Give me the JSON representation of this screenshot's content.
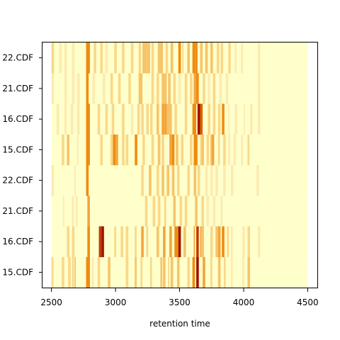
{
  "chart_data": {
    "type": "heatmap",
    "title": "",
    "xlabel": "retention time",
    "ylabel": "",
    "xlim": [
      2430,
      4575
    ],
    "xticks": [
      2500,
      3000,
      3500,
      4000,
      4500
    ],
    "x_range": [
      2500,
      4500
    ],
    "row_labels": [
      "15.CDF",
      "16.CDF",
      "21.CDF",
      "22.CDF",
      "15.CDF",
      "16.CDF",
      "21.CDF",
      "22.CDF"
    ],
    "colors": {
      "background": "#FFFFCC",
      "scale": [
        "#FFFFCC",
        "#FCEBB0",
        "#F9D88A",
        "#F6C46A",
        "#F3A53A",
        "#EE8C10",
        "#D96300",
        "#C23A00",
        "#A01000"
      ]
    },
    "bands": [
      [
        [
          2500,
          2515,
          2
        ],
        [
          2580,
          2600,
          2
        ],
        [
          2630,
          2650,
          2
        ],
        [
          2660,
          2675,
          2
        ],
        [
          2680,
          2690,
          3
        ],
        [
          2770,
          2800,
          5
        ],
        [
          2815,
          2830,
          1
        ],
        [
          2860,
          2880,
          2
        ],
        [
          2940,
          2960,
          3
        ],
        [
          3080,
          3100,
          2
        ],
        [
          3150,
          3165,
          3
        ],
        [
          3195,
          3210,
          2
        ],
        [
          3270,
          3285,
          2
        ],
        [
          3350,
          3365,
          3
        ],
        [
          3370,
          3390,
          3
        ],
        [
          3410,
          3420,
          2
        ],
        [
          3430,
          3450,
          3
        ],
        [
          3480,
          3500,
          3
        ],
        [
          3560,
          3580,
          2
        ],
        [
          3600,
          3620,
          5
        ],
        [
          3630,
          3650,
          8
        ],
        [
          3680,
          3700,
          4
        ],
        [
          3740,
          3755,
          2
        ],
        [
          3800,
          3820,
          3
        ],
        [
          3845,
          3860,
          2
        ],
        [
          3900,
          3915,
          1
        ],
        [
          3990,
          4005,
          1
        ],
        [
          4030,
          4050,
          3
        ]
      ],
      [
        [
          2620,
          2640,
          2
        ],
        [
          2660,
          2680,
          2
        ],
        [
          2780,
          2800,
          5
        ],
        [
          2870,
          2890,
          7
        ],
        [
          2890,
          2910,
          8
        ],
        [
          2990,
          3005,
          2
        ],
        [
          3040,
          3060,
          2
        ],
        [
          3080,
          3100,
          2
        ],
        [
          3150,
          3165,
          2
        ],
        [
          3200,
          3220,
          4
        ],
        [
          3240,
          3255,
          2
        ],
        [
          3320,
          3340,
          3
        ],
        [
          3370,
          3390,
          4
        ],
        [
          3420,
          3440,
          4
        ],
        [
          3460,
          3490,
          5
        ],
        [
          3490,
          3510,
          8
        ],
        [
          3530,
          3550,
          3
        ],
        [
          3610,
          3620,
          4
        ],
        [
          3630,
          3650,
          7
        ],
        [
          3660,
          3670,
          4
        ],
        [
          3670,
          3690,
          3
        ],
        [
          3740,
          3760,
          2
        ],
        [
          3780,
          3800,
          3
        ],
        [
          3800,
          3820,
          4
        ],
        [
          3830,
          3850,
          5
        ],
        [
          3870,
          3885,
          2
        ],
        [
          3900,
          3915,
          1
        ],
        [
          3990,
          4010,
          1
        ],
        [
          4030,
          4050,
          2
        ],
        [
          4110,
          4130,
          1
        ]
      ],
      [
        [
          2590,
          2600,
          1
        ],
        [
          2660,
          2675,
          1
        ],
        [
          2690,
          2705,
          1
        ],
        [
          2780,
          2800,
          4
        ],
        [
          3230,
          3250,
          2
        ],
        [
          3290,
          3310,
          2
        ],
        [
          3330,
          3350,
          2
        ],
        [
          3380,
          3395,
          2
        ],
        [
          3450,
          3470,
          3
        ],
        [
          3500,
          3520,
          2
        ],
        [
          3540,
          3560,
          2
        ],
        [
          3620,
          3640,
          3
        ],
        [
          3670,
          3690,
          2
        ],
        [
          3710,
          3730,
          1
        ],
        [
          3760,
          3780,
          1
        ],
        [
          3820,
          3835,
          1
        ]
      ],
      [
        [
          2500,
          2520,
          1
        ],
        [
          2680,
          2690,
          1
        ],
        [
          2770,
          2790,
          5
        ],
        [
          3200,
          3220,
          2
        ],
        [
          3260,
          3280,
          3
        ],
        [
          3320,
          3340,
          2
        ],
        [
          3360,
          3380,
          3
        ],
        [
          3400,
          3420,
          3
        ],
        [
          3440,
          3460,
          3
        ],
        [
          3480,
          3500,
          2
        ],
        [
          3560,
          3580,
          2
        ],
        [
          3610,
          3630,
          3
        ],
        [
          3640,
          3660,
          2
        ],
        [
          3700,
          3720,
          1
        ],
        [
          3740,
          3760,
          1
        ],
        [
          3780,
          3800,
          1
        ],
        [
          3840,
          3860,
          1
        ],
        [
          3900,
          3920,
          1
        ],
        [
          4100,
          4120,
          1
        ]
      ],
      [
        [
          2580,
          2600,
          2
        ],
        [
          2620,
          2640,
          3
        ],
        [
          2700,
          2710,
          1
        ],
        [
          2770,
          2800,
          5
        ],
        [
          2880,
          2900,
          2
        ],
        [
          2960,
          2980,
          2
        ],
        [
          2980,
          3000,
          5
        ],
        [
          3000,
          3020,
          4
        ],
        [
          3050,
          3070,
          2
        ],
        [
          3080,
          3100,
          2
        ],
        [
          3150,
          3170,
          5
        ],
        [
          3210,
          3230,
          2
        ],
        [
          3280,
          3300,
          2
        ],
        [
          3330,
          3350,
          3
        ],
        [
          3360,
          3380,
          2
        ],
        [
          3420,
          3440,
          4
        ],
        [
          3440,
          3460,
          5
        ],
        [
          3470,
          3490,
          3
        ],
        [
          3510,
          3530,
          2
        ],
        [
          3580,
          3600,
          2
        ],
        [
          3610,
          3640,
          5
        ],
        [
          3660,
          3670,
          2
        ],
        [
          3670,
          3690,
          3
        ],
        [
          3710,
          3730,
          2
        ],
        [
          3740,
          3750,
          3
        ],
        [
          3750,
          3770,
          4
        ],
        [
          3800,
          3815,
          2
        ],
        [
          3840,
          3860,
          2
        ],
        [
          3880,
          3895,
          1
        ],
        [
          3920,
          3940,
          1
        ],
        [
          3980,
          3995,
          1
        ],
        [
          4030,
          4045,
          2
        ]
      ],
      [
        [
          2540,
          2560,
          1
        ],
        [
          2600,
          2620,
          1
        ],
        [
          2650,
          2670,
          1
        ],
        [
          2700,
          2720,
          1
        ],
        [
          2770,
          2800,
          5
        ],
        [
          2860,
          2880,
          2
        ],
        [
          2920,
          2940,
          2
        ],
        [
          2970,
          2990,
          2
        ],
        [
          3050,
          3070,
          2
        ],
        [
          3120,
          3140,
          1
        ],
        [
          3170,
          3190,
          2
        ],
        [
          3200,
          3220,
          2
        ],
        [
          3240,
          3260,
          2
        ],
        [
          3270,
          3290,
          2
        ],
        [
          3320,
          3340,
          3
        ],
        [
          3360,
          3380,
          4
        ],
        [
          3380,
          3400,
          4
        ],
        [
          3400,
          3440,
          3
        ],
        [
          3460,
          3480,
          2
        ],
        [
          3540,
          3560,
          2
        ],
        [
          3600,
          3630,
          5
        ],
        [
          3640,
          3660,
          8
        ],
        [
          3660,
          3680,
          6
        ],
        [
          3720,
          3740,
          2
        ],
        [
          3760,
          3780,
          2
        ],
        [
          3800,
          3820,
          2
        ],
        [
          3830,
          3850,
          5
        ],
        [
          3880,
          3890,
          1
        ],
        [
          3930,
          3950,
          1
        ],
        [
          4000,
          4010,
          1
        ],
        [
          4050,
          4070,
          1
        ],
        [
          4110,
          4130,
          1
        ]
      ],
      [
        [
          2500,
          2520,
          1
        ],
        [
          2600,
          2620,
          1
        ],
        [
          2660,
          2680,
          1
        ],
        [
          2700,
          2720,
          1
        ],
        [
          2770,
          2790,
          5
        ],
        [
          2820,
          2840,
          1
        ],
        [
          2900,
          2920,
          1
        ],
        [
          2960,
          2980,
          2
        ],
        [
          3020,
          3040,
          2
        ],
        [
          3100,
          3120,
          2
        ],
        [
          3180,
          3210,
          3
        ],
        [
          3280,
          3300,
          2
        ],
        [
          3320,
          3340,
          2
        ],
        [
          3360,
          3400,
          3
        ],
        [
          3410,
          3430,
          3
        ],
        [
          3450,
          3470,
          2
        ],
        [
          3490,
          3510,
          1
        ],
        [
          3540,
          3560,
          2
        ],
        [
          3580,
          3600,
          2
        ],
        [
          3610,
          3630,
          4
        ],
        [
          3630,
          3650,
          5
        ],
        [
          3680,
          3700,
          2
        ],
        [
          3720,
          3740,
          1
        ],
        [
          3760,
          3780,
          2
        ],
        [
          3810,
          3830,
          1
        ],
        [
          3860,
          3880,
          1
        ],
        [
          4110,
          4130,
          1
        ]
      ],
      [
        [
          2500,
          2520,
          2
        ],
        [
          2560,
          2580,
          1
        ],
        [
          2600,
          2620,
          1
        ],
        [
          2660,
          2680,
          1
        ],
        [
          2770,
          2800,
          5
        ],
        [
          2830,
          2850,
          2
        ],
        [
          2880,
          2900,
          2
        ],
        [
          2920,
          2940,
          1
        ],
        [
          2990,
          3010,
          2
        ],
        [
          3050,
          3070,
          2
        ],
        [
          3120,
          3140,
          2
        ],
        [
          3180,
          3200,
          2
        ],
        [
          3210,
          3250,
          3
        ],
        [
          3250,
          3270,
          3
        ],
        [
          3280,
          3300,
          2
        ],
        [
          3330,
          3370,
          3
        ],
        [
          3390,
          3410,
          2
        ],
        [
          3430,
          3450,
          3
        ],
        [
          3490,
          3510,
          5
        ],
        [
          3520,
          3530,
          2
        ],
        [
          3560,
          3580,
          3
        ],
        [
          3600,
          3620,
          5
        ],
        [
          3620,
          3640,
          5
        ],
        [
          3660,
          3680,
          3
        ],
        [
          3700,
          3720,
          3
        ],
        [
          3740,
          3760,
          3
        ],
        [
          3790,
          3810,
          2
        ],
        [
          3820,
          3840,
          2
        ],
        [
          3880,
          3900,
          2
        ],
        [
          3930,
          3945,
          1
        ],
        [
          3980,
          3995,
          1
        ],
        [
          4110,
          4130,
          1
        ]
      ]
    ]
  }
}
